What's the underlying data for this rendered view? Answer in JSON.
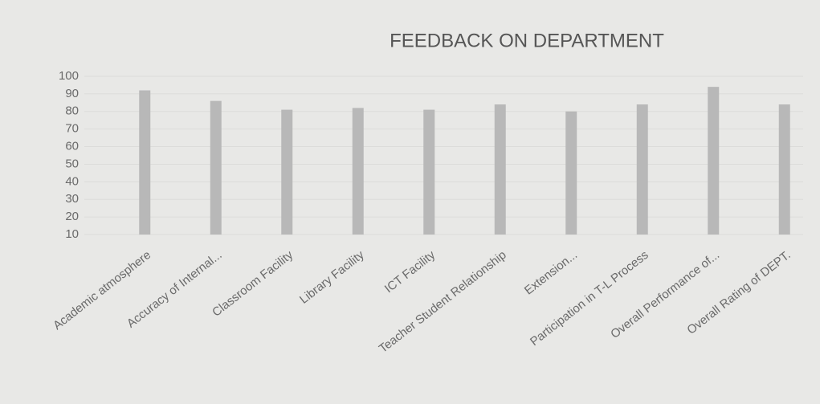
{
  "chart_data": {
    "type": "bar",
    "title": "FEEDBACK ON DEPARTMENT",
    "categories": [
      "Academic atmosphere",
      "Accuracy of Internal...",
      "Classroom Facility",
      "Library Facility",
      "ICT Facility",
      "Teacher Student Relationship",
      "Extension...",
      "Participation in T-L Process",
      "Overall Performance of...",
      "Overall Rating of DEPT."
    ],
    "values": [
      92,
      86,
      81,
      82,
      81,
      84,
      80,
      84,
      94,
      84
    ],
    "color": "#b8b8b8",
    "ylim": [
      10,
      100
    ],
    "yticks": [
      10,
      20,
      30,
      40,
      50,
      60,
      70,
      80,
      90,
      100
    ],
    "grid": true
  }
}
